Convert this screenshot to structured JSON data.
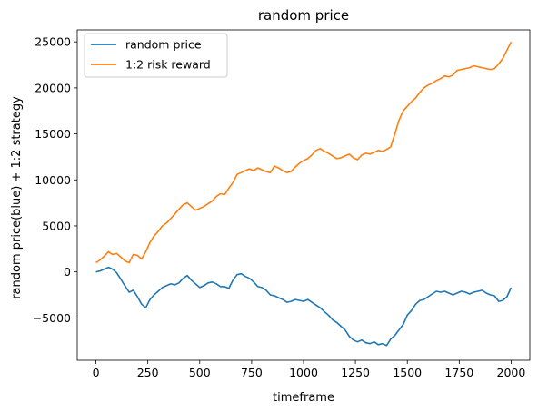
{
  "chart_data": {
    "type": "line",
    "title": "random price",
    "xlabel": "timeframe",
    "ylabel": "random price(blue) + 1:2 strategy",
    "xlim": [
      -90,
      2090
    ],
    "ylim": [
      -9600,
      26300
    ],
    "xticks": [
      0,
      250,
      500,
      750,
      1000,
      1250,
      1500,
      1750,
      2000
    ],
    "yticks": [
      -5000,
      0,
      5000,
      10000,
      15000,
      20000,
      25000
    ],
    "xtick_labels": [
      "0",
      "250",
      "500",
      "750",
      "1000",
      "1250",
      "1500",
      "1750",
      "2000"
    ],
    "ytick_labels": [
      "−5000",
      "0",
      "5000",
      "10000",
      "15000",
      "20000",
      "25000"
    ],
    "grid": false,
    "legend_position": "top-left",
    "series": [
      {
        "name": "random price",
        "color": "#1f77b4",
        "x": [
          0,
          20,
          40,
          60,
          80,
          100,
          120,
          140,
          160,
          180,
          200,
          220,
          240,
          260,
          280,
          300,
          320,
          340,
          360,
          380,
          400,
          420,
          440,
          460,
          480,
          500,
          520,
          540,
          560,
          580,
          600,
          620,
          640,
          660,
          680,
          700,
          720,
          740,
          760,
          780,
          800,
          820,
          840,
          860,
          880,
          900,
          920,
          940,
          960,
          980,
          1000,
          1020,
          1040,
          1060,
          1080,
          1100,
          1120,
          1140,
          1160,
          1180,
          1200,
          1220,
          1240,
          1260,
          1280,
          1300,
          1320,
          1340,
          1360,
          1380,
          1400,
          1420,
          1440,
          1460,
          1480,
          1500,
          1520,
          1540,
          1560,
          1580,
          1600,
          1620,
          1640,
          1660,
          1680,
          1700,
          1720,
          1740,
          1760,
          1780,
          1800,
          1820,
          1840,
          1860,
          1880,
          1900,
          1920,
          1940,
          1960,
          1980,
          2000
        ],
        "y": [
          0,
          100,
          300,
          500,
          300,
          -100,
          -800,
          -1500,
          -2200,
          -2000,
          -2700,
          -3500,
          -3900,
          -3000,
          -2500,
          -2100,
          -1700,
          -1500,
          -1300,
          -1400,
          -1200,
          -700,
          -400,
          -900,
          -1300,
          -1700,
          -1500,
          -1200,
          -1100,
          -1300,
          -1600,
          -1600,
          -1800,
          -900,
          -300,
          -200,
          -500,
          -700,
          -1100,
          -1600,
          -1700,
          -2000,
          -2500,
          -2600,
          -2800,
          -3000,
          -3300,
          -3200,
          -3000,
          -3100,
          -3200,
          -3000,
          -3300,
          -3600,
          -3900,
          -4300,
          -4700,
          -5200,
          -5500,
          -5900,
          -6300,
          -7000,
          -7400,
          -7600,
          -7400,
          -7700,
          -7800,
          -7600,
          -7900,
          -7800,
          -8000,
          -7300,
          -6900,
          -6300,
          -5700,
          -4700,
          -4200,
          -3500,
          -3100,
          -3000,
          -2700,
          -2400,
          -2100,
          -2200,
          -2100,
          -2300,
          -2500,
          -2300,
          -2100,
          -2200,
          -2400,
          -2200,
          -2100,
          -2000,
          -2300,
          -2500,
          -2600,
          -3200,
          -3100,
          -2700,
          -1700
        ]
      },
      {
        "name": "1:2 risk reward",
        "color": "#ff7f0e",
        "x": [
          0,
          20,
          40,
          60,
          80,
          100,
          120,
          140,
          160,
          180,
          200,
          220,
          240,
          260,
          280,
          300,
          320,
          340,
          360,
          380,
          400,
          420,
          440,
          460,
          480,
          500,
          520,
          540,
          560,
          580,
          600,
          620,
          640,
          660,
          680,
          700,
          720,
          740,
          760,
          780,
          800,
          820,
          840,
          860,
          880,
          900,
          920,
          940,
          960,
          980,
          1000,
          1020,
          1040,
          1060,
          1080,
          1100,
          1120,
          1140,
          1160,
          1180,
          1200,
          1220,
          1240,
          1260,
          1280,
          1300,
          1320,
          1340,
          1360,
          1380,
          1400,
          1420,
          1440,
          1460,
          1480,
          1500,
          1520,
          1540,
          1560,
          1580,
          1600,
          1620,
          1640,
          1660,
          1680,
          1700,
          1720,
          1740,
          1760,
          1780,
          1800,
          1820,
          1840,
          1860,
          1880,
          1900,
          1920,
          1940,
          1960,
          1980,
          2000
        ],
        "y": [
          1000,
          1300,
          1700,
          2200,
          1900,
          2000,
          1600,
          1200,
          1000,
          1900,
          1800,
          1400,
          2200,
          3200,
          3900,
          4400,
          5000,
          5300,
          5800,
          6300,
          6800,
          7300,
          7500,
          7100,
          6700,
          6900,
          7100,
          7400,
          7700,
          8200,
          8500,
          8400,
          9100,
          9700,
          10600,
          10800,
          11000,
          11200,
          11000,
          11300,
          11100,
          10900,
          10800,
          11500,
          11300,
          11000,
          10800,
          10900,
          11400,
          11800,
          12100,
          12300,
          12700,
          13200,
          13400,
          13100,
          12900,
          12600,
          12300,
          12400,
          12600,
          12800,
          12400,
          12200,
          12700,
          12900,
          12800,
          13000,
          13200,
          13100,
          13300,
          13600,
          15000,
          16500,
          17500,
          18000,
          18500,
          18900,
          19500,
          20000,
          20300,
          20500,
          20800,
          21000,
          21300,
          21200,
          21400,
          21900,
          22000,
          22100,
          22200,
          22400,
          22300,
          22200,
          22100,
          22000,
          22100,
          22600,
          23200,
          24100,
          25000
        ]
      }
    ]
  }
}
